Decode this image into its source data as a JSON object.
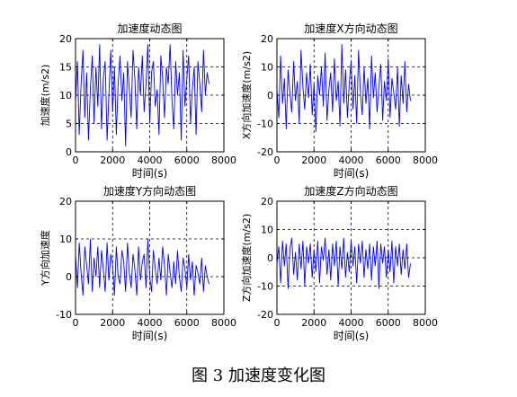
{
  "caption": "图 3  加速度变化图",
  "chart_data": [
    {
      "type": "line",
      "title": "加速度动态图",
      "xlabel": "时间(s)",
      "ylabel": "加速度(m/s2)",
      "xlim": [
        0,
        8000
      ],
      "ylim": [
        0,
        20
      ],
      "xticks": [
        0,
        2000,
        4000,
        6000,
        8000
      ],
      "yticks": [
        0,
        5,
        10,
        15,
        20
      ],
      "grid": "dashed",
      "color": "#0000ff",
      "series": [
        {
          "x": [
            0,
            100,
            200,
            300,
            400,
            500,
            600,
            700,
            800,
            900,
            1000,
            1100,
            1200,
            1300,
            1400,
            1500,
            1600,
            1700,
            1800,
            1900,
            2000,
            2100,
            2200,
            2300,
            2400,
            2500,
            2600,
            2700,
            2800,
            2900,
            3000,
            3100,
            3200,
            3300,
            3400,
            3500,
            3600,
            3700,
            3800,
            3900,
            4000,
            4100,
            4200,
            4300,
            4400,
            4500,
            4600,
            4700,
            4800,
            4900,
            5000,
            5100,
            5200,
            5300,
            5400,
            5500,
            5600,
            5700,
            5800,
            5900,
            6000,
            6100,
            6200,
            6300,
            6400,
            6500,
            6600,
            6700,
            6800,
            6900,
            7000,
            7100,
            7200
          ],
          "values": [
            9,
            16,
            3,
            12,
            18,
            6,
            14,
            2,
            11,
            17,
            5,
            15,
            8,
            19,
            4,
            13,
            16,
            2,
            10,
            18,
            7,
            15,
            3,
            12,
            17,
            9,
            14,
            1,
            16,
            11,
            6,
            18,
            13,
            4,
            15,
            10,
            17,
            7,
            12,
            19,
            5,
            14,
            16,
            8,
            11,
            3,
            17,
            13,
            6,
            15,
            12,
            19,
            9,
            4,
            16,
            10,
            14,
            2,
            18,
            8,
            13,
            17,
            5,
            11,
            15,
            3,
            16,
            12,
            7,
            18,
            10,
            14,
            12
          ]
        }
      ]
    },
    {
      "type": "line",
      "title": "加速度X方向动态图",
      "xlabel": "时间(s)",
      "ylabel": "X方向加速度(m/s2)",
      "xlim": [
        0,
        8000
      ],
      "ylim": [
        -20,
        20
      ],
      "xticks": [
        0,
        2000,
        4000,
        6000,
        8000
      ],
      "yticks": [
        -20,
        -10,
        0,
        10,
        20
      ],
      "grid": "dashed",
      "color": "#0000ff",
      "series": [
        {
          "x": [
            0,
            100,
            200,
            300,
            400,
            500,
            600,
            700,
            800,
            900,
            1000,
            1100,
            1200,
            1300,
            1400,
            1500,
            1600,
            1700,
            1800,
            1900,
            2000,
            2100,
            2200,
            2300,
            2400,
            2500,
            2600,
            2700,
            2800,
            2900,
            3000,
            3100,
            3200,
            3300,
            3400,
            3500,
            3600,
            3700,
            3800,
            3900,
            4000,
            4100,
            4200,
            4300,
            4400,
            4500,
            4600,
            4700,
            4800,
            4900,
            5000,
            5100,
            5200,
            5300,
            5400,
            5500,
            5600,
            5700,
            5800,
            5900,
            6000,
            6100,
            6200,
            6300,
            6400,
            6500,
            6600,
            6700,
            6800,
            6900,
            7000,
            7100,
            7200
          ],
          "values": [
            2,
            -8,
            14,
            -3,
            6,
            -12,
            9,
            1,
            -6,
            12,
            -2,
            5,
            -10,
            16,
            3,
            -5,
            8,
            -1,
            11,
            -7,
            4,
            -13,
            7,
            0,
            10,
            -4,
            15,
            -9,
            2,
            8,
            -6,
            13,
            -2,
            5,
            -11,
            18,
            -3,
            9,
            -8,
            4,
            12,
            -5,
            7,
            -10,
            16,
            1,
            -7,
            10,
            -3,
            6,
            -12,
            14,
            -1,
            8,
            -6,
            3,
            11,
            -9,
            5,
            -2,
            13,
            -8,
            6,
            1,
            -5,
            10,
            -11,
            7,
            -3,
            12,
            -6,
            4,
            -2
          ]
        }
      ]
    },
    {
      "type": "line",
      "title": "加速度Y方向动态图",
      "xlabel": "时间(s)",
      "ylabel": "Y方向加速度",
      "xlim": [
        0,
        8000
      ],
      "ylim": [
        -10,
        20
      ],
      "xticks": [
        0,
        2000,
        4000,
        6000,
        8000
      ],
      "yticks": [
        -10,
        0,
        10,
        20
      ],
      "grid": "dashed",
      "color": "#0000ff",
      "series": [
        {
          "x": [
            0,
            100,
            200,
            300,
            400,
            500,
            600,
            700,
            800,
            900,
            1000,
            1100,
            1200,
            1300,
            1400,
            1500,
            1600,
            1700,
            1800,
            1900,
            2000,
            2100,
            2200,
            2300,
            2400,
            2500,
            2600,
            2700,
            2800,
            2900,
            3000,
            3100,
            3200,
            3300,
            3400,
            3500,
            3600,
            3700,
            3800,
            3900,
            4000,
            4100,
            4200,
            4300,
            4400,
            4500,
            4600,
            4700,
            4800,
            4900,
            5000,
            5100,
            5200,
            5300,
            5400,
            5500,
            5600,
            5700,
            5800,
            5900,
            6000,
            6100,
            6200,
            6300,
            6400,
            6500,
            6600,
            6700,
            6800,
            6900,
            7000,
            7100,
            7200
          ],
          "values": [
            6,
            -3,
            9,
            1,
            -5,
            8,
            3,
            -2,
            10,
            -4,
            5,
            0,
            8,
            -3,
            7,
            2,
            -4,
            9,
            -1,
            6,
            3,
            -5,
            8,
            0,
            -2,
            7,
            4,
            -4,
            9,
            1,
            -3,
            6,
            2,
            -5,
            8,
            -1,
            4,
            6,
            -3,
            10,
            0,
            -4,
            7,
            2,
            -2,
            5,
            -1,
            8,
            3,
            -5,
            6,
            1,
            -3,
            4,
            -2,
            7,
            0,
            -4,
            5,
            2,
            -3,
            6,
            -1,
            4,
            -5,
            3,
            1,
            -2,
            5,
            -4,
            3,
            0,
            -2
          ]
        }
      ]
    },
    {
      "type": "line",
      "title": "加速度Z方向动态图",
      "xlabel": "时间(s)",
      "ylabel": "Z方向加速度(m/s2)",
      "xlim": [
        0,
        8000
      ],
      "ylim": [
        -20,
        20
      ],
      "xticks": [
        0,
        2000,
        4000,
        6000,
        8000
      ],
      "yticks": [
        -20,
        -10,
        0,
        10,
        20
      ],
      "grid": "dashed",
      "color": "#0000ff",
      "series": [
        {
          "x": [
            0,
            100,
            200,
            300,
            400,
            500,
            600,
            700,
            800,
            900,
            1000,
            1100,
            1200,
            1300,
            1400,
            1500,
            1600,
            1700,
            1800,
            1900,
            2000,
            2100,
            2200,
            2300,
            2400,
            2500,
            2600,
            2700,
            2800,
            2900,
            3000,
            3100,
            3200,
            3300,
            3400,
            3500,
            3600,
            3700,
            3800,
            3900,
            4000,
            4100,
            4200,
            4300,
            4400,
            4500,
            4600,
            4700,
            4800,
            4900,
            5000,
            5100,
            5200,
            5300,
            5400,
            5500,
            5600,
            5700,
            5800,
            5900,
            6000,
            6100,
            6200,
            6300,
            6400,
            6500,
            6600,
            6700,
            6800,
            6900,
            7000,
            7100,
            7200
          ],
          "values": [
            -2,
            4,
            -9,
            6,
            -3,
            5,
            -11,
            3,
            7,
            -6,
            2,
            -8,
            5,
            -4,
            6,
            -10,
            4,
            -2,
            5,
            -7,
            3,
            -5,
            6,
            -9,
            4,
            -1,
            7,
            -6,
            3,
            -8,
            5,
            -3,
            6,
            -10,
            4,
            -4,
            7,
            -7,
            2,
            -5,
            6,
            -3,
            4,
            -9,
            5,
            -2,
            6,
            -7,
            3,
            -4,
            5,
            -8,
            4,
            -3,
            6,
            -11,
            5,
            -2,
            4,
            -7,
            3,
            -5,
            6,
            -9,
            4,
            -3,
            5,
            -6,
            3,
            -4,
            5,
            -7,
            -2
          ]
        }
      ]
    }
  ]
}
